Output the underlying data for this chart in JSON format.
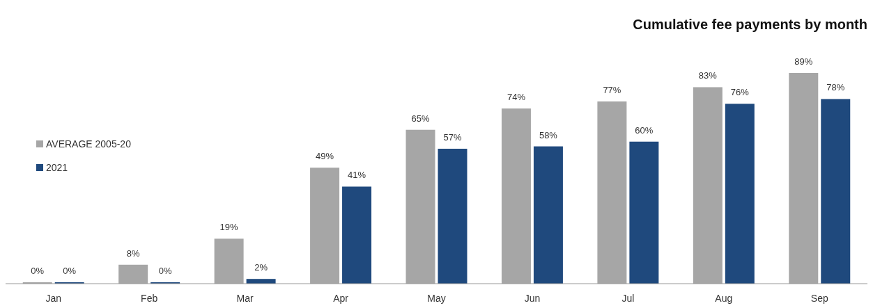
{
  "chart_data": {
    "type": "bar",
    "title": "Cumulative fee payments by month",
    "categories": [
      "Jan",
      "Feb",
      "Mar",
      "Apr",
      "May",
      "Jun",
      "Jul",
      "Aug",
      "Sep"
    ],
    "series": [
      {
        "name": "AVERAGE 2005-20",
        "color": "#a6a6a6",
        "values": [
          0,
          8,
          19,
          49,
          65,
          74,
          77,
          83,
          89
        ],
        "value_labels": [
          "0%",
          "8%",
          "19%",
          "49%",
          "65%",
          "74%",
          "77%",
          "83%",
          "89%"
        ]
      },
      {
        "name": "2021",
        "color": "#1f497d",
        "values": [
          0,
          0,
          2,
          41,
          57,
          58,
          60,
          76,
          78
        ],
        "value_labels": [
          "0%",
          "0%",
          "2%",
          "41%",
          "57%",
          "58%",
          "60%",
          "76%",
          "78%"
        ]
      }
    ],
    "legend": "left"
  }
}
